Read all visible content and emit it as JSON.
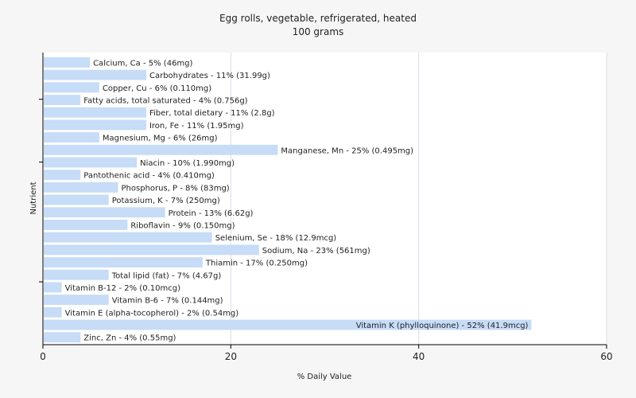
{
  "chart_data": {
    "type": "bar",
    "orientation": "horizontal",
    "title": "Egg rolls, vegetable, refrigerated, heated",
    "subtitle": "100 grams",
    "xlabel": "% Daily Value",
    "ylabel": "Nutrient",
    "xlim": [
      0,
      60
    ],
    "xticks": [
      0,
      20,
      40,
      60
    ],
    "grid": true,
    "bar_color": "#c6dcf7",
    "bars": [
      {
        "category": "Calcium, Ca",
        "value": 5,
        "label": "Calcium, Ca - 5% (46mg)"
      },
      {
        "category": "Carbohydrates",
        "value": 11,
        "label": "Carbohydrates - 11% (31.99g)"
      },
      {
        "category": "Copper, Cu",
        "value": 6,
        "label": "Copper, Cu - 6% (0.110mg)"
      },
      {
        "category": "Fatty acids, total saturated",
        "value": 4,
        "label": "Fatty acids, total saturated - 4% (0.756g)"
      },
      {
        "category": "Fiber, total dietary",
        "value": 11,
        "label": "Fiber, total dietary - 11% (2.8g)"
      },
      {
        "category": "Iron, Fe",
        "value": 11,
        "label": "Iron, Fe - 11% (1.95mg)"
      },
      {
        "category": "Magnesium, Mg",
        "value": 6,
        "label": "Magnesium, Mg - 6% (26mg)"
      },
      {
        "category": "Manganese, Mn",
        "value": 25,
        "label": "Manganese, Mn - 25% (0.495mg)"
      },
      {
        "category": "Niacin",
        "value": 10,
        "label": "Niacin - 10% (1.990mg)"
      },
      {
        "category": "Pantothenic acid",
        "value": 4,
        "label": "Pantothenic acid - 4% (0.410mg)"
      },
      {
        "category": "Phosphorus, P",
        "value": 8,
        "label": "Phosphorus, P - 8% (83mg)"
      },
      {
        "category": "Potassium, K",
        "value": 7,
        "label": "Potassium, K - 7% (250mg)"
      },
      {
        "category": "Protein",
        "value": 13,
        "label": "Protein - 13% (6.62g)"
      },
      {
        "category": "Riboflavin",
        "value": 9,
        "label": "Riboflavin - 9% (0.150mg)"
      },
      {
        "category": "Selenium, Se",
        "value": 18,
        "label": "Selenium, Se - 18% (12.9mcg)"
      },
      {
        "category": "Sodium, Na",
        "value": 23,
        "label": "Sodium, Na - 23% (561mg)"
      },
      {
        "category": "Thiamin",
        "value": 17,
        "label": "Thiamin - 17% (0.250mg)"
      },
      {
        "category": "Total lipid (fat)",
        "value": 7,
        "label": "Total lipid (fat) - 7% (4.67g)"
      },
      {
        "category": "Vitamin B-12",
        "value": 2,
        "label": "Vitamin B-12 - 2% (0.10mcg)"
      },
      {
        "category": "Vitamin B-6",
        "value": 7,
        "label": "Vitamin B-6 - 7% (0.144mg)"
      },
      {
        "category": "Vitamin E (alpha-tocopherol)",
        "value": 2,
        "label": "Vitamin E (alpha-tocopherol) - 2% (0.54mg)"
      },
      {
        "category": "Vitamin K (phylloquinone)",
        "value": 52,
        "label": "Vitamin K (phylloquinone) - 52% (41.9mcg)"
      },
      {
        "category": "Zinc, Zn",
        "value": 4,
        "label": "Zinc, Zn - 4% (0.55mg)"
      }
    ]
  }
}
